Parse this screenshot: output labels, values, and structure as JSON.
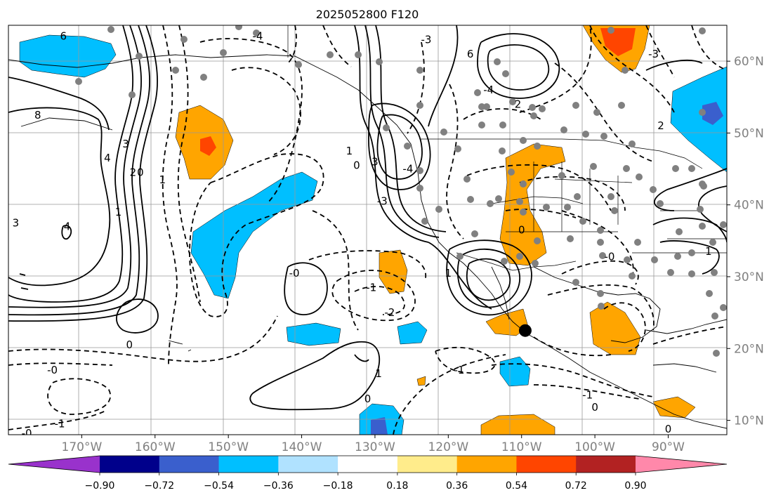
{
  "title": "2025052800 F120",
  "map": {
    "projection": "PlateCarree",
    "lon_range": [
      -180,
      -82
    ],
    "lat_range": [
      8,
      65
    ],
    "gridlines": true
  },
  "axes": {
    "lon_ticks": [
      {
        "value": -170,
        "label": "170°W"
      },
      {
        "value": -160,
        "label": "160°W"
      },
      {
        "value": -150,
        "label": "150°W"
      },
      {
        "value": -140,
        "label": "140°W"
      },
      {
        "value": -130,
        "label": "130°W"
      },
      {
        "value": -120,
        "label": "120°W"
      },
      {
        "value": -110,
        "label": "110°W"
      },
      {
        "value": -100,
        "label": "100°W"
      },
      {
        "value": -90,
        "label": "90°W"
      }
    ],
    "lat_ticks": [
      {
        "value": 60,
        "label": "60°N"
      },
      {
        "value": 50,
        "label": "50°N"
      },
      {
        "value": 40,
        "label": "40°N"
      },
      {
        "value": 30,
        "label": "30°N"
      },
      {
        "value": 20,
        "label": "20°N"
      },
      {
        "value": 10,
        "label": "10°N"
      }
    ]
  },
  "colorbar": {
    "colors": [
      "#9932cc",
      "#00008b",
      "#3a5fcd",
      "#00bfff",
      "#b0e2ff",
      "#ffffff",
      "#ffec8b",
      "#ffa500",
      "#ff4500",
      "#b22222",
      "#ff88aa"
    ],
    "labels": [
      "−0.90",
      "−0.72",
      "−0.54",
      "−0.36",
      "−0.18",
      "0.18",
      "0.36",
      "0.54",
      "0.72",
      "0.90"
    ]
  },
  "contour_labels": [
    {
      "text": "6",
      "lon": -172.5,
      "lat": 63.5
    },
    {
      "text": "8",
      "lon": -176,
      "lat": 52.5
    },
    {
      "text": "3",
      "lon": -164,
      "lat": 48.5
    },
    {
      "text": "4",
      "lon": -166.5,
      "lat": 46.5
    },
    {
      "text": "2",
      "lon": -163,
      "lat": 44.5
    },
    {
      "text": "1",
      "lon": -159,
      "lat": 43.5
    },
    {
      "text": "0",
      "lon": -162,
      "lat": 44.5
    },
    {
      "text": "1",
      "lon": -165,
      "lat": 39
    },
    {
      "text": "4",
      "lon": -172,
      "lat": 37
    },
    {
      "text": "3",
      "lon": -179,
      "lat": 37.5
    },
    {
      "text": "-4",
      "lon": -146,
      "lat": 63.5
    },
    {
      "text": "-3",
      "lon": -129,
      "lat": 40.5
    },
    {
      "text": "-0",
      "lon": -141,
      "lat": 30.5
    },
    {
      "text": "-1",
      "lon": -130.5,
      "lat": 28.5
    },
    {
      "text": "-2",
      "lon": -128,
      "lat": 25
    },
    {
      "text": "0",
      "lon": -163.5,
      "lat": 20.5
    },
    {
      "text": "-0",
      "lon": -174,
      "lat": 17
    },
    {
      "text": "-1",
      "lon": -173,
      "lat": 9.5
    },
    {
      "text": "-0",
      "lon": -177.5,
      "lat": 8.2
    },
    {
      "text": "1",
      "lon": -129.5,
      "lat": 16.5
    },
    {
      "text": "0",
      "lon": -131,
      "lat": 13
    },
    {
      "text": "-1",
      "lon": -118.5,
      "lat": 17
    },
    {
      "text": "-3",
      "lon": -123,
      "lat": 63
    },
    {
      "text": "6",
      "lon": -117,
      "lat": 61
    },
    {
      "text": "-4",
      "lon": -114.5,
      "lat": 56
    },
    {
      "text": "2",
      "lon": -110.5,
      "lat": 54
    },
    {
      "text": "3",
      "lon": -130,
      "lat": 46
    },
    {
      "text": "1",
      "lon": -133.5,
      "lat": 47.5
    },
    {
      "text": "0",
      "lon": -132.5,
      "lat": 45.5
    },
    {
      "text": "-4",
      "lon": -125.5,
      "lat": 45
    },
    {
      "text": "0",
      "lon": -110,
      "lat": 36.5
    },
    {
      "text": "1",
      "lon": -120,
      "lat": 30.5
    },
    {
      "text": "-0",
      "lon": -98,
      "lat": 32.8
    },
    {
      "text": "-1",
      "lon": -101,
      "lat": 13.5
    },
    {
      "text": "0",
      "lon": -100,
      "lat": 11.8
    },
    {
      "text": "0",
      "lon": -90,
      "lat": 8.8
    },
    {
      "text": "-3",
      "lon": -92,
      "lat": 61
    },
    {
      "text": "2",
      "lon": -91,
      "lat": 51
    },
    {
      "text": "1",
      "lon": -84.5,
      "lat": 33.5
    }
  ],
  "marker": {
    "lon": -109.5,
    "lat": 22.5
  }
}
